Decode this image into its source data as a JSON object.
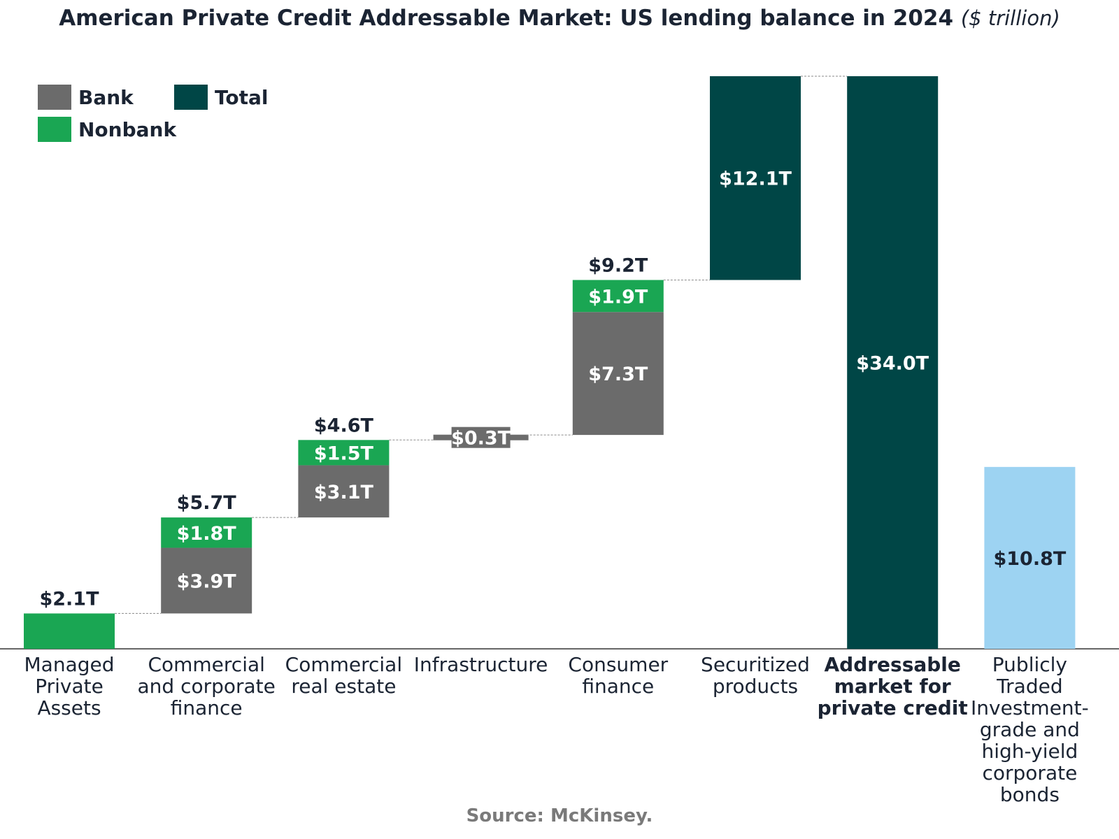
{
  "title": "American Private Credit Addressable Market: US lending balance in 2024",
  "title_unit": "($ trillion)",
  "source": "Source: McKinsey.",
  "legend": [
    {
      "key": "bank",
      "label": "Bank",
      "color": "#6b6b6b"
    },
    {
      "key": "total",
      "label": "Total",
      "color": "#004646"
    },
    {
      "key": "nonbank",
      "label": "Nonbank",
      "color": "#1aa653"
    }
  ],
  "chart_data": {
    "type": "waterfall",
    "unit": "$ trillion",
    "ylim": [
      0,
      34.0
    ],
    "colors": {
      "bank": "#6b6b6b",
      "nonbank": "#1aa653",
      "total": "#004646",
      "public": "#9dd3f2"
    },
    "categories": [
      {
        "label": [
          "Managed",
          "Private",
          "Assets"
        ],
        "bold": false,
        "base": 0.0,
        "segments": [
          {
            "kind": "nonbank",
            "value": 2.1,
            "label": ""
          }
        ],
        "top_label": "$2.1T"
      },
      {
        "label": [
          "Commercial",
          "and corporate",
          "finance"
        ],
        "bold": false,
        "base": 2.1,
        "segments": [
          {
            "kind": "bank",
            "value": 3.9,
            "label": "$3.9T"
          },
          {
            "kind": "nonbank",
            "value": 1.8,
            "label": "$1.8T"
          }
        ],
        "top_label": "$5.7T"
      },
      {
        "label": [
          "Commercial",
          "real estate"
        ],
        "bold": false,
        "base": 7.8,
        "segments": [
          {
            "kind": "bank",
            "value": 3.1,
            "label": "$3.1T"
          },
          {
            "kind": "nonbank",
            "value": 1.5,
            "label": "$1.5T"
          }
        ],
        "top_label": "$4.6T"
      },
      {
        "label": [
          "Infrastructure"
        ],
        "bold": false,
        "base": 12.4,
        "segments": [
          {
            "kind": "bank",
            "value": 0.3,
            "label": "$0.3T"
          }
        ],
        "top_label": ""
      },
      {
        "label": [
          "Consumer",
          "finance"
        ],
        "bold": false,
        "base": 12.7,
        "segments": [
          {
            "kind": "bank",
            "value": 7.3,
            "label": "$7.3T"
          },
          {
            "kind": "nonbank",
            "value": 1.9,
            "label": "$1.9T"
          }
        ],
        "top_label": "$9.2T"
      },
      {
        "label": [
          "Securitized",
          "products"
        ],
        "bold": false,
        "base": 21.9,
        "segments": [
          {
            "kind": "total",
            "value": 12.1,
            "label": "$12.1T"
          }
        ],
        "top_label": ""
      },
      {
        "label": [
          "Addressable",
          "market for",
          "private credit"
        ],
        "bold": true,
        "base": 0.0,
        "segments": [
          {
            "kind": "total",
            "value": 34.0,
            "label": "$34.0T"
          }
        ],
        "top_label": ""
      },
      {
        "label": [
          "Publicly",
          "Traded",
          "Investment-",
          "grade and",
          "high-yield",
          "corporate",
          "bonds"
        ],
        "bold": false,
        "base": 0.0,
        "segments": [
          {
            "kind": "public",
            "value": 10.8,
            "label": "$10.8T"
          }
        ],
        "top_label": ""
      }
    ]
  }
}
